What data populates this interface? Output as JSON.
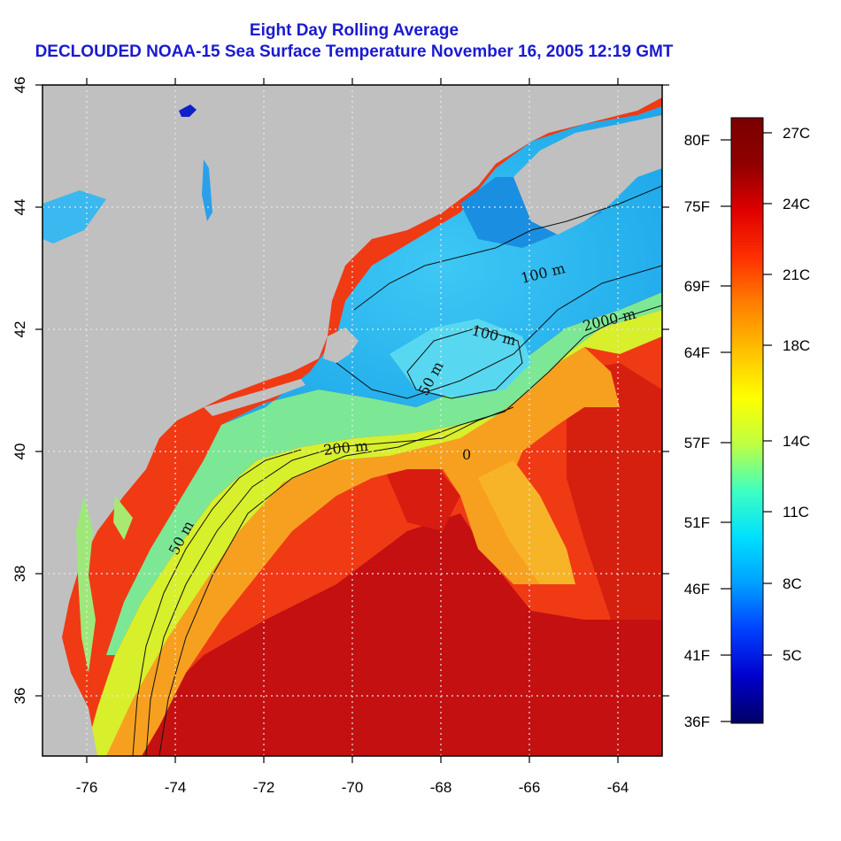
{
  "title_line1": "Eight Day Rolling Average",
  "title_line2": "DECLOUDED NOAA-15 Sea Surface Temperature November 16, 2005 12:19 GMT",
  "map": {
    "x_ticks": [
      "-76",
      "-74",
      "-72",
      "-70",
      "-68",
      "-66",
      "-64"
    ],
    "y_ticks": [
      "36",
      "38",
      "40",
      "42",
      "44",
      "46"
    ],
    "contour_labels": [
      "50 m",
      "200 m",
      "100 m",
      "2000 m",
      "100 m",
      "50 m",
      "0"
    ],
    "colors": {
      "land": "#c0c0c0",
      "cold_water": "#2ab8ee",
      "mid_water": "#c4ee30",
      "warm_water": "#f23a12",
      "gulf_stream_core": "#c81010",
      "grid": "#dddddd"
    }
  },
  "colorbar": {
    "fahrenheit_labels": [
      "80F",
      "75F",
      "69F",
      "64F",
      "57F",
      "51F",
      "46F",
      "41F",
      "36F"
    ],
    "celsius_labels": [
      "27C",
      "24C",
      "21C",
      "18C",
      "14C",
      "11C",
      "8C",
      "5C"
    ],
    "gradient_stops": [
      "#000066",
      "#0000cc",
      "#0040ff",
      "#00a0ff",
      "#00e0ff",
      "#40ffc0",
      "#c0ff40",
      "#ffff00",
      "#ffc000",
      "#ff8000",
      "#ff3000",
      "#e00000",
      "#900000",
      "#7a0000"
    ]
  }
}
